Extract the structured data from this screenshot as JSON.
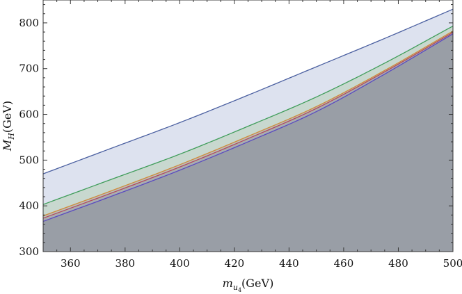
{
  "chart_data": {
    "type": "area",
    "xlabel_var": "m",
    "xlabel_sub": "u",
    "xlabel_subsub": "4",
    "xlabel_unit": "(GeV)",
    "ylabel_var": "M",
    "ylabel_sub": "H",
    "ylabel_unit": "(GeV)",
    "xlim": [
      350,
      500
    ],
    "ylim": [
      300,
      850
    ],
    "x_ticks": [
      360,
      380,
      400,
      420,
      440,
      460,
      480,
      500
    ],
    "y_ticks": [
      300,
      400,
      500,
      600,
      700,
      800
    ],
    "x": [
      350,
      375,
      400,
      425,
      450,
      475,
      500
    ],
    "series": [
      {
        "values": [
          470,
          526,
          582,
          642,
          704,
          766,
          830
        ],
        "color": "#4a5fa0",
        "fill": "#dde2ef"
      },
      {
        "values": [
          403,
          458,
          513,
          574,
          638,
          712,
          793
        ],
        "color": "#3f9d5a",
        "fill": "#c8d8cf"
      },
      {
        "values": [
          378,
          433,
          490,
          552,
          617,
          696,
          782
        ],
        "color": "#d08a3a",
        "fill": "#b9c0bb"
      },
      {
        "values": [
          373,
          428,
          485,
          547,
          613,
          693,
          779
        ],
        "color": "#b44a5a",
        "fill": "#a9aeb0"
      },
      {
        "values": [
          366,
          421,
          478,
          540,
          606,
          688,
          776
        ],
        "color": "#5a4ac0",
        "fill": "#999ea6"
      }
    ]
  }
}
